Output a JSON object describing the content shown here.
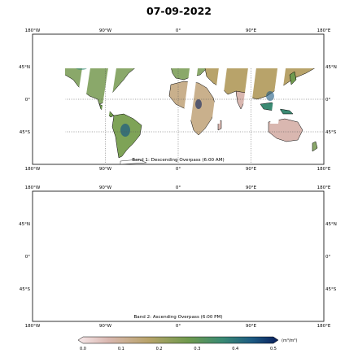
{
  "title": "07-09-2022",
  "lon_labels": [
    "180°W",
    "90°W",
    "0°",
    "90°E",
    "180°E"
  ],
  "lat_labels": [
    "45°N",
    "0°",
    "45°S"
  ],
  "panels": [
    {
      "caption": "Band 1: Descending Overpass (6:00 AM)"
    },
    {
      "caption": "Band 2: Ascending Overpass (6:00 PM)"
    }
  ],
  "colorbar": {
    "ticks": [
      "0.0",
      "0.1",
      "0.2",
      "0.3",
      "0.4",
      "0.5"
    ],
    "unit": "(m³/m³)",
    "colors": [
      "#f7e8ea",
      "#d9b7b0",
      "#b8a36a",
      "#6f9a4e",
      "#3a8a73",
      "#1d5a82",
      "#0a1f5c"
    ]
  }
}
